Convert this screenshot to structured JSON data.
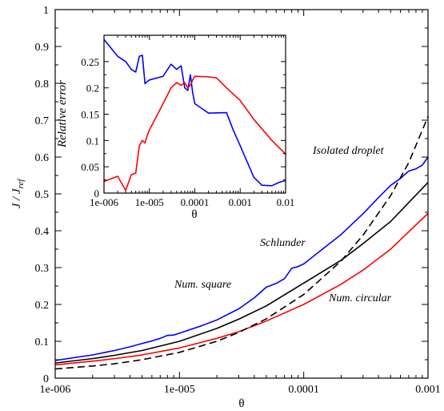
{
  "chart_data": [
    {
      "id": "main",
      "type": "line",
      "xscale": "log",
      "xlim": [
        1e-06,
        0.001
      ],
      "ylim": [
        0,
        1
      ],
      "xticks": [
        1e-06,
        1e-05,
        0.0001,
        0.001
      ],
      "xtick_labels": [
        "1e-006",
        "1e-005",
        "0.0001",
        "0.001"
      ],
      "yticks": [
        0,
        0.1,
        0.2,
        0.3,
        0.4,
        0.5,
        0.6,
        0.7,
        0.8,
        0.9,
        1
      ],
      "ytick_labels": [
        "0",
        "0.1",
        "0.2",
        "0.3",
        "0.4",
        "0.5",
        "0.6",
        "0.7",
        "0.8",
        "0.9",
        "1"
      ],
      "xlabel": "θ",
      "ylabel": "J / J",
      "ylabel_sub": "ref",
      "grid": false,
      "annotations": [
        "Isolated droplet",
        "Schlunder",
        "Num. square",
        "Num. circular"
      ],
      "series": [
        {
          "color": "#0000ff",
          "dash": "solid",
          "x": [
            1e-06,
            2e-06,
            3e-06,
            4e-06,
            5e-06,
            6e-06,
            7e-06,
            8e-06,
            9e-06,
            1e-05,
            1.5e-05,
            2e-05,
            3e-05,
            4e-05,
            5e-05,
            6e-05,
            7e-05,
            8e-05,
            9e-05,
            0.0001,
            0.0002,
            0.0003,
            0.0004,
            0.0005,
            0.0006,
            0.0007,
            0.0008,
            0.0009,
            0.001
          ],
          "y": [
            0.048,
            0.063,
            0.075,
            0.085,
            0.094,
            0.101,
            0.108,
            0.116,
            0.117,
            0.122,
            0.142,
            0.158,
            0.188,
            0.218,
            0.247,
            0.257,
            0.27,
            0.298,
            0.303,
            0.31,
            0.39,
            0.446,
            0.49,
            0.523,
            0.542,
            0.562,
            0.568,
            0.578,
            0.6
          ]
        },
        {
          "color": "#000000",
          "dash": "solid",
          "x": [
            1e-06,
            2e-06,
            3e-06,
            5e-06,
            1e-05,
            2e-05,
            3e-05,
            5e-05,
            0.0001,
            0.0002,
            0.0003,
            0.0005,
            0.001
          ],
          "y": [
            0.041,
            0.053,
            0.062,
            0.075,
            0.1,
            0.135,
            0.16,
            0.196,
            0.258,
            0.32,
            0.365,
            0.425,
            0.531
          ]
        },
        {
          "color": "#ff0000",
          "dash": "solid",
          "x": [
            1e-06,
            2e-06,
            3e-06,
            5e-06,
            1e-05,
            2e-05,
            3e-05,
            5e-05,
            0.0001,
            0.0002,
            0.0003,
            0.0005,
            0.001
          ],
          "y": [
            0.036,
            0.046,
            0.053,
            0.063,
            0.082,
            0.108,
            0.126,
            0.155,
            0.2,
            0.255,
            0.293,
            0.35,
            0.447
          ]
        },
        {
          "color": "#000000",
          "dash": "dashed",
          "x": [
            1e-06,
            2e-06,
            3e-06,
            5e-06,
            1e-05,
            2e-05,
            3e-05,
            5e-05,
            0.0001,
            0.0002,
            0.0003,
            0.0005,
            0.0007,
            0.001
          ],
          "y": [
            0.025,
            0.033,
            0.039,
            0.05,
            0.07,
            0.1,
            0.124,
            0.161,
            0.227,
            0.318,
            0.388,
            0.495,
            0.585,
            0.71
          ]
        }
      ]
    },
    {
      "id": "inset",
      "type": "line",
      "xscale": "log",
      "xlim": [
        1e-06,
        0.01
      ],
      "ylim": [
        0,
        0.3
      ],
      "xticks": [
        1e-06,
        1e-05,
        0.0001,
        0.001,
        0.01
      ],
      "xtick_labels": [
        "1e-006",
        "1e-005",
        "0.0001",
        "0.001",
        "0.01"
      ],
      "yticks": [
        0,
        0.05,
        0.1,
        0.15,
        0.2,
        0.25
      ],
      "ytick_labels": [
        "0",
        "0.05",
        "0.1",
        "0.15",
        "0.2",
        "0.25"
      ],
      "xlabel": "θ",
      "ylabel": "Relative error",
      "grid": false,
      "series": [
        {
          "color": "#0000ff",
          "dash": "solid",
          "x": [
            1e-06,
            2e-06,
            3e-06,
            4e-06,
            5e-06,
            6e-06,
            7e-06,
            8e-06,
            9e-06,
            1e-05,
            2e-05,
            3e-05,
            4e-05,
            5e-05,
            6e-05,
            7e-05,
            8e-05,
            9e-05,
            0.0001,
            0.0002,
            0.0005,
            0.0007,
            0.001,
            0.002,
            0.003,
            0.005,
            0.007,
            0.01
          ],
          "y": [
            0.292,
            0.26,
            0.25,
            0.235,
            0.23,
            0.26,
            0.262,
            0.208,
            0.212,
            0.215,
            0.222,
            0.245,
            0.235,
            0.242,
            0.2,
            0.195,
            0.225,
            0.19,
            0.17,
            0.152,
            0.153,
            0.12,
            0.09,
            0.03,
            0.015,
            0.014,
            0.02,
            0.024
          ]
        },
        {
          "color": "#ff0000",
          "dash": "solid",
          "x": [
            1e-06,
            2e-06,
            3e-06,
            4e-06,
            5e-06,
            6e-06,
            7e-06,
            8e-06,
            9e-06,
            1e-05,
            2e-05,
            3e-05,
            4e-05,
            5e-05,
            6e-05,
            7e-05,
            8e-05,
            9e-05,
            0.0001,
            0.0002,
            0.0003,
            0.0005,
            0.001,
            0.002,
            0.005,
            0.01
          ],
          "y": [
            0.022,
            0.032,
            0.005,
            0.035,
            0.038,
            0.09,
            0.1,
            0.095,
            0.11,
            0.12,
            0.17,
            0.2,
            0.21,
            0.205,
            0.21,
            0.2,
            0.205,
            0.215,
            0.222,
            0.221,
            0.219,
            0.2,
            0.176,
            0.14,
            0.1,
            0.074
          ]
        }
      ]
    }
  ]
}
